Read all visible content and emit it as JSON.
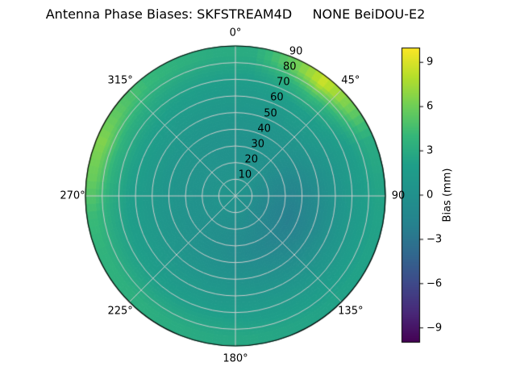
{
  "title": "Antenna Phase Biases: SKFSTREAM4D     NONE BeiDOU-E2",
  "colors": {
    "background": "#ffffff",
    "grid": "#cccccc",
    "outline": "#000000",
    "viridis_low": "#440154",
    "viridis_mid": "#21918c",
    "viridis_high": "#fde725"
  },
  "chart_data": {
    "type": "heatmap",
    "projection": "polar",
    "title": "Antenna Phase Biases: SKFSTREAM4D     NONE BeiDOU-E2",
    "theta_direction": "clockwise-from-north",
    "theta_ticks_deg": [
      0,
      45,
      90,
      135,
      180,
      225,
      270,
      315
    ],
    "theta_tick_labels": [
      "0°",
      "45°",
      "90",
      "135°",
      "180°",
      "225°",
      "270°",
      "315°"
    ],
    "r_ticks": [
      10,
      20,
      30,
      40,
      50,
      60,
      70,
      80,
      90
    ],
    "r_tick_labels": [
      "10",
      "20",
      "30",
      "40",
      "50",
      "60",
      "70",
      "80",
      "90"
    ],
    "r_label_angle_deg": 22.5,
    "r_max": 90,
    "grid": true,
    "theta_bin_deg": 15,
    "r_bin": 10,
    "values_note": "rows = 24 theta bins of 15° starting at 0° (north, clockwise); cols = 9 radial rings 0-90; units mm",
    "values": [
      [
        0.5,
        0.3,
        0.2,
        0.2,
        0.5,
        1.0,
        1.5,
        2.2,
        3.0
      ],
      [
        0.5,
        0.3,
        0.2,
        0.2,
        0.5,
        1.0,
        1.8,
        3.0,
        5.5
      ],
      [
        0.5,
        0.2,
        0.0,
        0.2,
        0.5,
        1.2,
        2.0,
        4.0,
        8.5
      ],
      [
        0.4,
        0.0,
        -0.3,
        -0.2,
        0.3,
        1.0,
        1.8,
        3.0,
        6.0
      ],
      [
        0.3,
        -0.3,
        -0.8,
        -0.8,
        -0.3,
        0.5,
        1.2,
        2.0,
        3.0
      ],
      [
        0.2,
        -0.6,
        -1.2,
        -1.4,
        -0.8,
        0.0,
        1.0,
        1.8,
        2.5
      ],
      [
        0.1,
        -0.8,
        -1.6,
        -1.9,
        -1.2,
        -0.3,
        0.8,
        1.6,
        2.3
      ],
      [
        0.0,
        -1.0,
        -1.8,
        -2.2,
        -1.5,
        -0.5,
        0.6,
        1.5,
        2.2
      ],
      [
        0.0,
        -0.9,
        -1.6,
        -2.0,
        -1.4,
        -0.4,
        0.6,
        1.5,
        2.2
      ],
      [
        0.1,
        -0.7,
        -1.3,
        -1.6,
        -1.0,
        -0.2,
        0.8,
        1.6,
        2.3
      ],
      [
        0.2,
        -0.5,
        -1.0,
        -1.2,
        -0.6,
        0.2,
        1.0,
        1.8,
        2.5
      ],
      [
        0.2,
        -0.3,
        -0.7,
        -0.8,
        -0.3,
        0.5,
        1.2,
        2.0,
        2.7
      ],
      [
        0.3,
        -0.2,
        -0.5,
        -0.5,
        0.0,
        0.7,
        1.4,
        2.2,
        2.8
      ],
      [
        0.3,
        -0.1,
        -0.3,
        -0.2,
        0.2,
        0.9,
        1.5,
        2.3,
        3.0
      ],
      [
        0.3,
        0.0,
        -0.2,
        0.0,
        0.4,
        1.0,
        1.6,
        2.4,
        3.2
      ],
      [
        0.4,
        0.1,
        0.0,
        0.2,
        0.6,
        1.2,
        1.8,
        2.5,
        3.4
      ],
      [
        0.4,
        0.2,
        0.1,
        0.3,
        0.7,
        1.3,
        1.9,
        2.7,
        3.6
      ],
      [
        0.4,
        0.2,
        0.2,
        0.4,
        0.8,
        1.4,
        2.0,
        2.9,
        4.2
      ],
      [
        0.5,
        0.3,
        0.2,
        0.4,
        0.9,
        1.5,
        2.2,
        3.4,
        5.8
      ],
      [
        0.5,
        0.3,
        0.3,
        0.5,
        0.9,
        1.6,
        2.3,
        3.6,
        6.5
      ],
      [
        0.5,
        0.3,
        0.3,
        0.5,
        0.9,
        1.5,
        2.2,
        3.2,
        5.2
      ],
      [
        0.5,
        0.3,
        0.3,
        0.4,
        0.8,
        1.3,
        2.0,
        2.8,
        4.0
      ],
      [
        0.5,
        0.3,
        0.2,
        0.3,
        0.7,
        1.2,
        1.8,
        2.5,
        3.4
      ],
      [
        0.5,
        0.3,
        0.2,
        0.3,
        0.6,
        1.1,
        1.6,
        2.3,
        3.0
      ]
    ],
    "colorbar": {
      "label": "Bias (mm)",
      "colormap": "viridis",
      "vmin": -10,
      "vmax": 10,
      "ticks": [
        9,
        6,
        3,
        0,
        -3,
        -6,
        -9
      ],
      "tick_labels": [
        "9",
        "6",
        "3",
        "0",
        "−3",
        "−6",
        "−9"
      ],
      "position": "right"
    }
  }
}
